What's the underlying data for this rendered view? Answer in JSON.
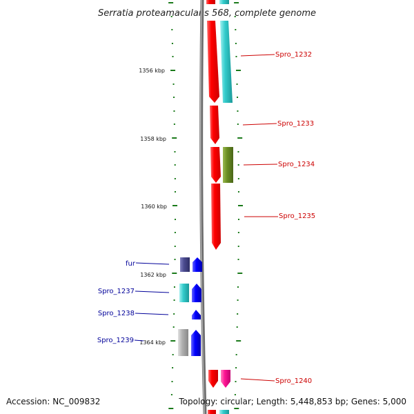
{
  "map": {
    "title": "Serratia proteamaculans 568, complete genome",
    "accession": "Accession: NC_009832",
    "summary": "Topology: circular; Length: 5,448,853 bp; Genes: 5,000",
    "tick_labels": [
      "1356 kbp",
      "1358 kbp",
      "1360 kbp",
      "1362 kbp",
      "1364 kbp"
    ],
    "colors": {
      "backbone": "#888888",
      "ticks": "#1a7a1a",
      "forward_label": "#cc0000",
      "reverse_label": "#000099"
    }
  },
  "genes": [
    {
      "label": "Spro_1232",
      "strand": "forward",
      "color": "#ff0000",
      "companion_color": "#33cccc"
    },
    {
      "label": "Spro_1233",
      "strand": "forward",
      "color": "#ff0000"
    },
    {
      "label": "Spro_1234",
      "strand": "forward",
      "color": "#ff0000",
      "companion_color": "#6b8e23"
    },
    {
      "label": "Spro_1235",
      "strand": "forward",
      "color": "#ff0000"
    },
    {
      "label": "fur",
      "strand": "reverse",
      "color": "#0000ff",
      "companion_color": "#4b4b8f"
    },
    {
      "label": "Spro_1237",
      "strand": "reverse",
      "color": "#0000ff",
      "companion_color": "#33cccc"
    },
    {
      "label": "Spro_1238",
      "strand": "reverse",
      "color": "#0000ff"
    },
    {
      "label": "Spro_1239",
      "strand": "reverse",
      "color": "#0000ff",
      "companion_color": "#b0b0b0"
    },
    {
      "label": "Spro_1240",
      "strand": "forward",
      "color": "#ff0000",
      "companion_color": "#ff1493"
    }
  ]
}
